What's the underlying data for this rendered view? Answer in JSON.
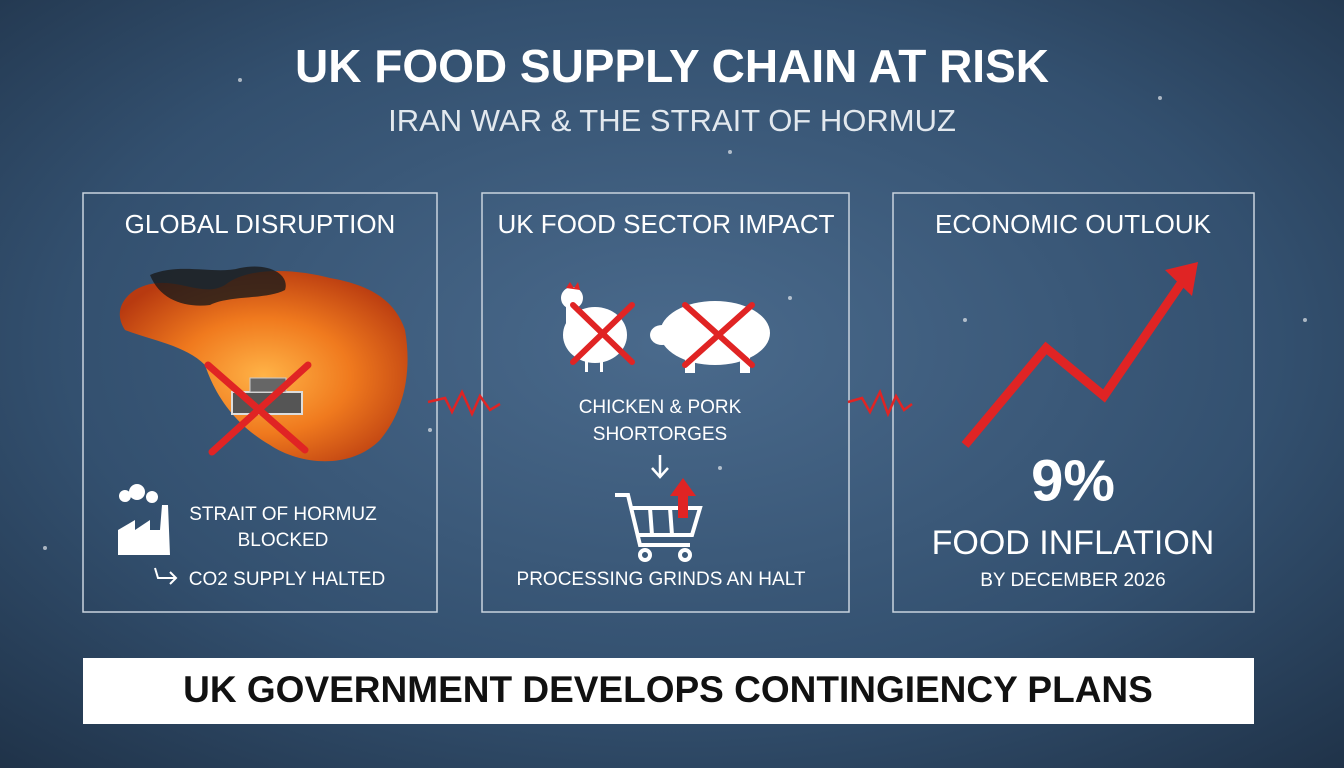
{
  "header": {
    "title": "UK FOOD SUPPLY CHAIN AT RISK",
    "subtitle": "IRAN WAR & THE STRAIT OF HORMUZ"
  },
  "panels": [
    {
      "title": "GLOBAL DISRUPTION",
      "lines": [
        "STRAIT OF HORMUZ",
        "BLOCKED"
      ],
      "note": "CO2 SUPPLY HALTED"
    },
    {
      "title": "UK FOOD SECTOR IMPACT",
      "lines": [
        "CHICKEN & PORK",
        "SHORTORGES"
      ],
      "note": "PROCESSING GRINDS AN HALT"
    },
    {
      "title": "ECONOMIC OUTLOUK",
      "figure": "9%",
      "lines": [
        "FOOD INFLATION",
        "BY DECEMBER 2026"
      ]
    }
  ],
  "banner": "UK GOVERNMENT DEVELOPS CONTINGIENCY PLANS"
}
